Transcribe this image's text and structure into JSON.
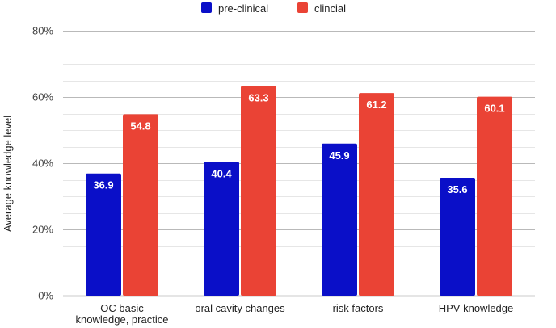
{
  "chart_data": {
    "type": "bar",
    "title": "",
    "xlabel": "",
    "ylabel": "Average knowledge level",
    "categories": [
      [
        "OC basic",
        "knowledge, practice"
      ],
      [
        "oral cavity changes"
      ],
      [
        "risk factors"
      ],
      [
        "HPV knowledge"
      ]
    ],
    "series": [
      {
        "name": "pre-clinical",
        "color": "#0a0fc8",
        "values": [
          36.9,
          40.4,
          45.9,
          35.6
        ],
        "labels": [
          "36.9",
          "40.4",
          "45.9",
          "35.6"
        ]
      },
      {
        "name": "clincial",
        "color": "#ea4335",
        "values": [
          54.8,
          63.3,
          61.2,
          60.1
        ],
        "labels": [
          "54.8",
          "63.3",
          "61.2",
          "60.1"
        ]
      }
    ],
    "ylim": [
      0,
      80
    ],
    "yticks": [
      0,
      20,
      40,
      60,
      80
    ],
    "ytick_labels": [
      "0%",
      "20%",
      "40%",
      "60%",
      "80%"
    ],
    "minor_gridlines": true,
    "legend_position": "top-center",
    "grid": true
  }
}
